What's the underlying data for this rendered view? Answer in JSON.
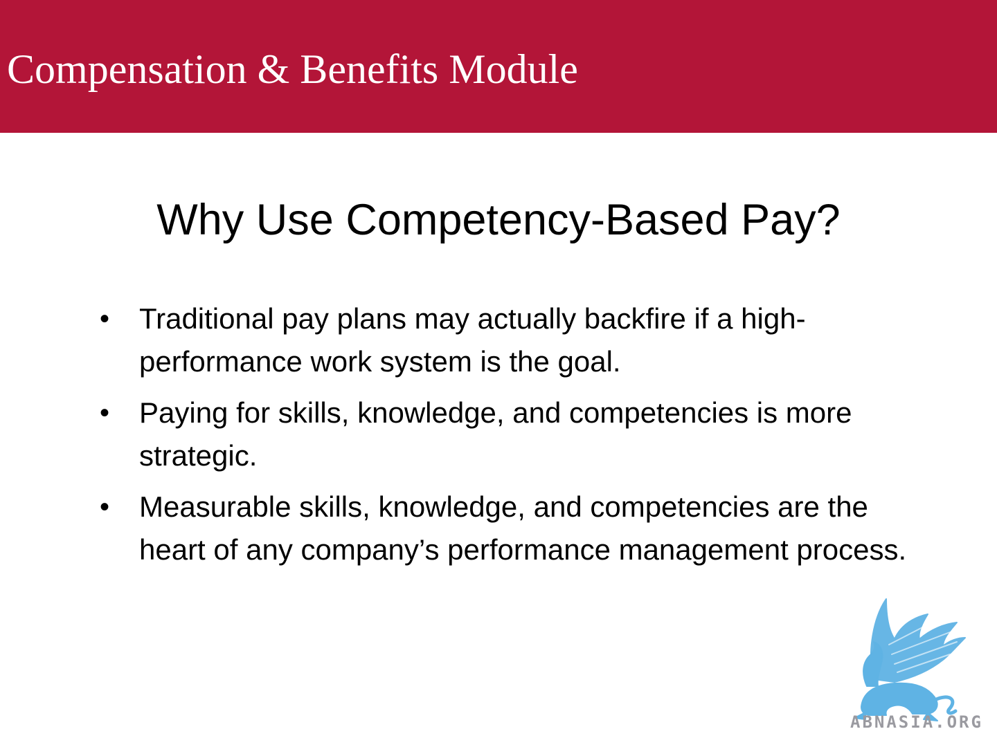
{
  "header": {
    "title": "Compensation & Benefits Module"
  },
  "slide": {
    "title": "Why Use Competency-Based Pay?",
    "bullet_glyph": "•",
    "bullets": [
      "Traditional pay plans may actually backfire if a high-performance work system is the goal.",
      "Paying for skills, knowledge, and competencies is more strategic.",
      "Measurable skills, knowledge, and competencies are the heart of any company’s performance management process."
    ]
  },
  "logo": {
    "text": "ABNASIA.ORG",
    "icon": "griffin-icon"
  },
  "colors": {
    "banner": "#b31538",
    "logo_blue": "#5fb3e4",
    "logo_text": "#9a9aa0"
  }
}
